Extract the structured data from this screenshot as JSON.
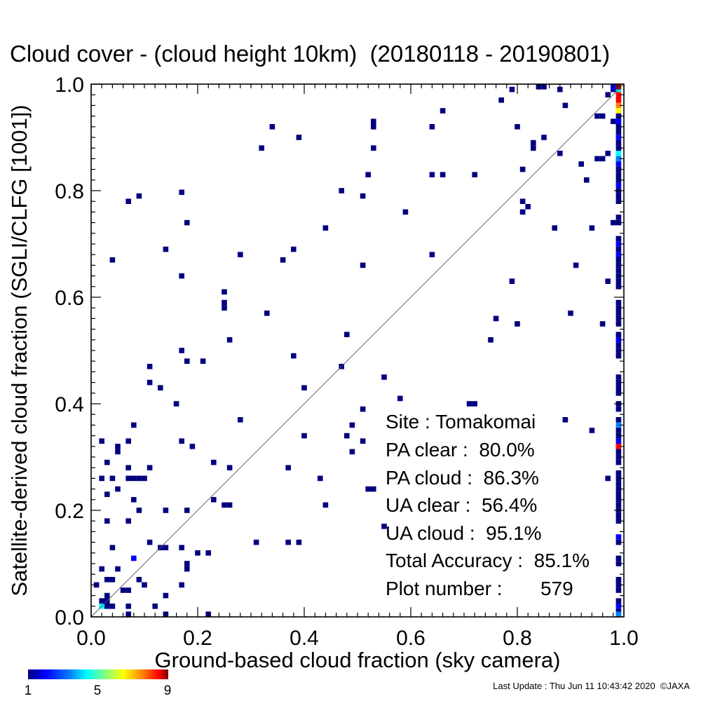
{
  "chart_data": {
    "type": "heatmap",
    "title": "Cloud cover - (cloud height 10km)  (20180118 - 20190801)",
    "xlabel": "Ground-based cloud fraction (sky camera)",
    "ylabel": "Satellite-derived cloud fraction (SGLI/CLFG [1001])",
    "xlim": [
      0,
      1
    ],
    "ylim": [
      0,
      1
    ],
    "grid": false,
    "x_ticks": [
      "0.0",
      "0.2",
      "0.4",
      "0.6",
      "0.8",
      "1.0"
    ],
    "y_ticks": [
      "0.0",
      "0.2",
      "0.4",
      "0.6",
      "0.8",
      "1.0"
    ],
    "reference_line": "y = x",
    "colorbar": {
      "ticks": [
        "1",
        "5",
        "9"
      ],
      "min": 1,
      "max": 9,
      "colors": [
        "#000080",
        "#0000ff",
        "#0080ff",
        "#00ffff",
        "#80ff80",
        "#ffff00",
        "#ff8000",
        "#ff0000",
        "#800000"
      ]
    },
    "cells": [
      {
        "x": 0.17,
        "y": 0.797,
        "count": 1
      },
      {
        "x": 0.07,
        "y": 0.78,
        "count": 1
      },
      {
        "x": 0.09,
        "y": 0.79,
        "count": 1
      },
      {
        "x": 0.18,
        "y": 0.74,
        "count": 1
      },
      {
        "x": 0.14,
        "y": 0.69,
        "count": 1
      },
      {
        "x": 0.04,
        "y": 0.67,
        "count": 1
      },
      {
        "x": 0.17,
        "y": 0.64,
        "count": 1
      },
      {
        "x": 0.25,
        "y": 0.61,
        "count": 1
      },
      {
        "x": 0.25,
        "y": 0.59,
        "count": 1
      },
      {
        "x": 0.25,
        "y": 0.58,
        "count": 1
      },
      {
        "x": 0.28,
        "y": 0.68,
        "count": 1
      },
      {
        "x": 0.33,
        "y": 0.57,
        "count": 1
      },
      {
        "x": 0.26,
        "y": 0.52,
        "count": 1
      },
      {
        "x": 0.17,
        "y": 0.5,
        "count": 1
      },
      {
        "x": 0.18,
        "y": 0.48,
        "count": 1
      },
      {
        "x": 0.21,
        "y": 0.48,
        "count": 1
      },
      {
        "x": 0.11,
        "y": 0.47,
        "count": 1
      },
      {
        "x": 0.11,
        "y": 0.44,
        "count": 1
      },
      {
        "x": 0.13,
        "y": 0.43,
        "count": 1
      },
      {
        "x": 0.16,
        "y": 0.4,
        "count": 1
      },
      {
        "x": 0.08,
        "y": 0.36,
        "count": 1
      },
      {
        "x": 0.28,
        "y": 0.37,
        "count": 1
      },
      {
        "x": 0.02,
        "y": 0.33,
        "count": 1
      },
      {
        "x": 0.05,
        "y": 0.32,
        "count": 1
      },
      {
        "x": 0.05,
        "y": 0.31,
        "count": 1
      },
      {
        "x": 0.07,
        "y": 0.33,
        "count": 1
      },
      {
        "x": 0.17,
        "y": 0.33,
        "count": 1
      },
      {
        "x": 0.19,
        "y": 0.32,
        "count": 1
      },
      {
        "x": 0.03,
        "y": 0.29,
        "count": 1
      },
      {
        "x": 0.07,
        "y": 0.28,
        "count": 1
      },
      {
        "x": 0.11,
        "y": 0.28,
        "count": 1
      },
      {
        "x": 0.23,
        "y": 0.29,
        "count": 1
      },
      {
        "x": 0.26,
        "y": 0.28,
        "count": 1
      },
      {
        "x": 0.02,
        "y": 0.26,
        "count": 1
      },
      {
        "x": 0.04,
        "y": 0.26,
        "count": 1
      },
      {
        "x": 0.07,
        "y": 0.26,
        "count": 1
      },
      {
        "x": 0.08,
        "y": 0.26,
        "count": 1
      },
      {
        "x": 0.09,
        "y": 0.26,
        "count": 1
      },
      {
        "x": 0.1,
        "y": 0.26,
        "count": 1
      },
      {
        "x": 0.05,
        "y": 0.24,
        "count": 1
      },
      {
        "x": 0.03,
        "y": 0.23,
        "count": 1
      },
      {
        "x": 0.08,
        "y": 0.22,
        "count": 1
      },
      {
        "x": 0.09,
        "y": 0.2,
        "count": 1
      },
      {
        "x": 0.14,
        "y": 0.2,
        "count": 1
      },
      {
        "x": 0.18,
        "y": 0.2,
        "count": 1
      },
      {
        "x": 0.23,
        "y": 0.22,
        "count": 1
      },
      {
        "x": 0.25,
        "y": 0.21,
        "count": 1
      },
      {
        "x": 0.26,
        "y": 0.21,
        "count": 1
      },
      {
        "x": 0.03,
        "y": 0.18,
        "count": 1
      },
      {
        "x": 0.07,
        "y": 0.18,
        "count": 1
      },
      {
        "x": 0.11,
        "y": 0.14,
        "count": 1
      },
      {
        "x": 0.13,
        "y": 0.13,
        "count": 1
      },
      {
        "x": 0.14,
        "y": 0.13,
        "count": 1
      },
      {
        "x": 0.04,
        "y": 0.13,
        "count": 1
      },
      {
        "x": 0.17,
        "y": 0.13,
        "count": 1
      },
      {
        "x": 0.2,
        "y": 0.12,
        "count": 1
      },
      {
        "x": 0.22,
        "y": 0.12,
        "count": 1
      },
      {
        "x": 0.18,
        "y": 0.1,
        "count": 1
      },
      {
        "x": 0.18,
        "y": 0.09,
        "count": 1
      },
      {
        "x": 0.02,
        "y": 0.09,
        "count": 1
      },
      {
        "x": 0.05,
        "y": 0.09,
        "count": 1
      },
      {
        "x": 0.08,
        "y": 0.11,
        "count": 2
      },
      {
        "x": 0.03,
        "y": 0.07,
        "count": 1
      },
      {
        "x": 0.04,
        "y": 0.07,
        "count": 1
      },
      {
        "x": 0.01,
        "y": 0.06,
        "count": 1
      },
      {
        "x": 0.09,
        "y": 0.07,
        "count": 1
      },
      {
        "x": 0.1,
        "y": 0.06,
        "count": 1
      },
      {
        "x": 0.06,
        "y": 0.05,
        "count": 1
      },
      {
        "x": 0.07,
        "y": 0.05,
        "count": 1
      },
      {
        "x": 0.03,
        "y": 0.04,
        "count": 1
      },
      {
        "x": 0.02,
        "y": 0.03,
        "count": 1
      },
      {
        "x": 0.03,
        "y": 0.03,
        "count": 1
      },
      {
        "x": 0.02,
        "y": 0.02,
        "count": 4
      },
      {
        "x": 0.03,
        "y": 0.02,
        "count": 1
      },
      {
        "x": 0.04,
        "y": 0.02,
        "count": 1
      },
      {
        "x": 0.07,
        "y": 0.02,
        "count": 1
      },
      {
        "x": 0.12,
        "y": 0.02,
        "count": 1
      },
      {
        "x": 0.14,
        "y": 0.04,
        "count": 1
      },
      {
        "x": 0.17,
        "y": 0.06,
        "count": 1
      },
      {
        "x": 0.07,
        "y": 0.0,
        "count": 1
      },
      {
        "x": 0.14,
        "y": 0.0,
        "count": 1
      },
      {
        "x": 0.22,
        "y": 0.0,
        "count": 1
      },
      {
        "x": 0.31,
        "y": 0.14,
        "count": 1
      },
      {
        "x": 0.37,
        "y": 0.14,
        "count": 1
      },
      {
        "x": 0.39,
        "y": 0.14,
        "count": 1
      },
      {
        "x": 0.37,
        "y": 0.28,
        "count": 1
      },
      {
        "x": 0.4,
        "y": 0.34,
        "count": 1
      },
      {
        "x": 0.4,
        "y": 0.43,
        "count": 1
      },
      {
        "x": 0.38,
        "y": 0.49,
        "count": 1
      },
      {
        "x": 0.36,
        "y": 0.67,
        "count": 1
      },
      {
        "x": 0.38,
        "y": 0.69,
        "count": 1
      },
      {
        "x": 0.44,
        "y": 0.73,
        "count": 1
      },
      {
        "x": 0.47,
        "y": 0.8,
        "count": 1
      },
      {
        "x": 0.32,
        "y": 0.88,
        "count": 1
      },
      {
        "x": 0.34,
        "y": 0.92,
        "count": 1
      },
      {
        "x": 0.39,
        "y": 0.9,
        "count": 1
      },
      {
        "x": 0.52,
        "y": 0.83,
        "count": 1
      },
      {
        "x": 0.53,
        "y": 0.88,
        "count": 1
      },
      {
        "x": 0.53,
        "y": 0.92,
        "count": 1
      },
      {
        "x": 0.53,
        "y": 0.93,
        "count": 1
      },
      {
        "x": 0.51,
        "y": 0.79,
        "count": 1
      },
      {
        "x": 0.51,
        "y": 0.66,
        "count": 1
      },
      {
        "x": 0.48,
        "y": 0.53,
        "count": 1
      },
      {
        "x": 0.47,
        "y": 0.47,
        "count": 1
      },
      {
        "x": 0.43,
        "y": 0.26,
        "count": 1
      },
      {
        "x": 0.44,
        "y": 0.21,
        "count": 1
      },
      {
        "x": 0.48,
        "y": 0.34,
        "count": 1
      },
      {
        "x": 0.49,
        "y": 0.36,
        "count": 1
      },
      {
        "x": 0.49,
        "y": 0.31,
        "count": 1
      },
      {
        "x": 0.51,
        "y": 0.33,
        "count": 1
      },
      {
        "x": 0.51,
        "y": 0.39,
        "count": 1
      },
      {
        "x": 0.52,
        "y": 0.24,
        "count": 1
      },
      {
        "x": 0.53,
        "y": 0.24,
        "count": 1
      },
      {
        "x": 0.55,
        "y": 0.45,
        "count": 1
      },
      {
        "x": 0.55,
        "y": 0.17,
        "count": 1
      },
      {
        "x": 0.58,
        "y": 0.41,
        "count": 1
      },
      {
        "x": 0.59,
        "y": 0.76,
        "count": 1
      },
      {
        "x": 0.64,
        "y": 0.68,
        "count": 1
      },
      {
        "x": 0.64,
        "y": 0.83,
        "count": 1
      },
      {
        "x": 0.66,
        "y": 0.83,
        "count": 1
      },
      {
        "x": 0.64,
        "y": 0.92,
        "count": 1
      },
      {
        "x": 0.66,
        "y": 0.95,
        "count": 1
      },
      {
        "x": 0.72,
        "y": 0.83,
        "count": 1
      },
      {
        "x": 0.71,
        "y": 0.4,
        "count": 1
      },
      {
        "x": 0.72,
        "y": 0.4,
        "count": 1
      },
      {
        "x": 0.75,
        "y": 0.52,
        "count": 1
      },
      {
        "x": 0.76,
        "y": 0.56,
        "count": 1
      },
      {
        "x": 0.77,
        "y": 0.97,
        "count": 1
      },
      {
        "x": 0.79,
        "y": 0.99,
        "count": 1
      },
      {
        "x": 0.79,
        "y": 0.63,
        "count": 1
      },
      {
        "x": 0.8,
        "y": 0.55,
        "count": 1
      },
      {
        "x": 0.8,
        "y": 0.92,
        "count": 1
      },
      {
        "x": 0.81,
        "y": 0.84,
        "count": 1
      },
      {
        "x": 0.81,
        "y": 0.78,
        "count": 1
      },
      {
        "x": 0.81,
        "y": 0.76,
        "count": 1
      },
      {
        "x": 0.82,
        "y": 0.77,
        "count": 1
      },
      {
        "x": 0.83,
        "y": 0.89,
        "count": 1
      },
      {
        "x": 0.83,
        "y": 0.88,
        "count": 1
      },
      {
        "x": 0.84,
        "y": 1.0,
        "count": 1
      },
      {
        "x": 0.85,
        "y": 1.0,
        "count": 1
      },
      {
        "x": 0.85,
        "y": 0.9,
        "count": 1
      },
      {
        "x": 0.87,
        "y": 0.73,
        "count": 1
      },
      {
        "x": 0.88,
        "y": 0.87,
        "count": 1
      },
      {
        "x": 0.88,
        "y": 0.99,
        "count": 1
      },
      {
        "x": 0.89,
        "y": 0.96,
        "count": 1
      },
      {
        "x": 0.89,
        "y": 0.37,
        "count": 1
      },
      {
        "x": 0.9,
        "y": 0.57,
        "count": 1
      },
      {
        "x": 0.91,
        "y": 0.66,
        "count": 1
      },
      {
        "x": 0.92,
        "y": 0.85,
        "count": 1
      },
      {
        "x": 0.93,
        "y": 0.82,
        "count": 1
      },
      {
        "x": 0.94,
        "y": 0.73,
        "count": 1
      },
      {
        "x": 0.94,
        "y": 0.35,
        "count": 1
      },
      {
        "x": 0.95,
        "y": 0.86,
        "count": 1
      },
      {
        "x": 0.96,
        "y": 0.86,
        "count": 1
      },
      {
        "x": 0.96,
        "y": 0.55,
        "count": 1
      },
      {
        "x": 0.97,
        "y": 0.87,
        "count": 1
      },
      {
        "x": 0.98,
        "y": 0.93,
        "count": 1
      },
      {
        "x": 0.97,
        "y": 0.63,
        "count": 1
      },
      {
        "x": 0.97,
        "y": 0.26,
        "count": 1
      },
      {
        "x": 0.98,
        "y": 0.74,
        "count": 1
      },
      {
        "x": 0.95,
        "y": 0.94,
        "count": 1
      },
      {
        "x": 0.96,
        "y": 0.94,
        "count": 1
      },
      {
        "x": 0.97,
        "y": 0.98,
        "count": 1
      },
      {
        "x": 0.98,
        "y": 0.99,
        "count": 1
      },
      {
        "x": 0.98,
        "y": 1.0,
        "count": 2
      },
      {
        "x": 0.99,
        "y": 0.99,
        "count": 4
      },
      {
        "x": 0.99,
        "y": 1.0,
        "count": 9
      },
      {
        "x": 0.99,
        "y": 0.98,
        "count": 8
      },
      {
        "x": 0.99,
        "y": 0.97,
        "count": 8
      },
      {
        "x": 0.99,
        "y": 0.96,
        "count": 7
      },
      {
        "x": 0.99,
        "y": 0.95,
        "count": 6
      },
      {
        "x": 0.99,
        "y": 0.94,
        "count": 1
      },
      {
        "x": 0.99,
        "y": 0.93,
        "count": 2
      },
      {
        "x": 0.99,
        "y": 0.92,
        "count": 1
      },
      {
        "x": 0.99,
        "y": 0.91,
        "count": 1
      },
      {
        "x": 0.99,
        "y": 0.9,
        "count": 2
      },
      {
        "x": 0.99,
        "y": 0.89,
        "count": 1
      },
      {
        "x": 0.99,
        "y": 0.88,
        "count": 1
      },
      {
        "x": 0.99,
        "y": 0.87,
        "count": 4
      },
      {
        "x": 0.99,
        "y": 0.86,
        "count": 3
      },
      {
        "x": 0.99,
        "y": 0.85,
        "count": 2
      },
      {
        "x": 0.99,
        "y": 0.84,
        "count": 1
      },
      {
        "x": 0.99,
        "y": 0.83,
        "count": 1
      },
      {
        "x": 0.99,
        "y": 0.82,
        "count": 1
      },
      {
        "x": 0.99,
        "y": 0.81,
        "count": 2
      },
      {
        "x": 0.99,
        "y": 0.8,
        "count": 1
      },
      {
        "x": 0.99,
        "y": 0.79,
        "count": 1
      },
      {
        "x": 0.99,
        "y": 0.78,
        "count": 1
      },
      {
        "x": 0.99,
        "y": 0.75,
        "count": 1
      },
      {
        "x": 0.99,
        "y": 0.74,
        "count": 1
      },
      {
        "x": 0.99,
        "y": 0.71,
        "count": 1
      },
      {
        "x": 0.99,
        "y": 0.7,
        "count": 2
      },
      {
        "x": 0.99,
        "y": 0.69,
        "count": 1
      },
      {
        "x": 0.99,
        "y": 0.68,
        "count": 2
      },
      {
        "x": 0.99,
        "y": 0.67,
        "count": 1
      },
      {
        "x": 0.99,
        "y": 0.66,
        "count": 1
      },
      {
        "x": 0.99,
        "y": 0.65,
        "count": 1
      },
      {
        "x": 0.99,
        "y": 0.64,
        "count": 1
      },
      {
        "x": 0.99,
        "y": 0.63,
        "count": 1
      },
      {
        "x": 0.99,
        "y": 0.62,
        "count": 1
      },
      {
        "x": 0.99,
        "y": 0.59,
        "count": 1
      },
      {
        "x": 0.99,
        "y": 0.58,
        "count": 1
      },
      {
        "x": 0.99,
        "y": 0.57,
        "count": 1
      },
      {
        "x": 0.99,
        "y": 0.56,
        "count": 1
      },
      {
        "x": 0.99,
        "y": 0.55,
        "count": 1
      },
      {
        "x": 0.99,
        "y": 0.53,
        "count": 1
      },
      {
        "x": 0.99,
        "y": 0.52,
        "count": 2
      },
      {
        "x": 0.99,
        "y": 0.51,
        "count": 1
      },
      {
        "x": 0.99,
        "y": 0.5,
        "count": 1
      },
      {
        "x": 0.99,
        "y": 0.49,
        "count": 1
      },
      {
        "x": 0.99,
        "y": 0.45,
        "count": 1
      },
      {
        "x": 0.99,
        "y": 0.44,
        "count": 1
      },
      {
        "x": 0.99,
        "y": 0.43,
        "count": 1
      },
      {
        "x": 0.99,
        "y": 0.42,
        "count": 1
      },
      {
        "x": 0.99,
        "y": 0.4,
        "count": 1
      },
      {
        "x": 0.99,
        "y": 0.39,
        "count": 1
      },
      {
        "x": 0.99,
        "y": 0.37,
        "count": 1
      },
      {
        "x": 0.99,
        "y": 0.36,
        "count": 3
      },
      {
        "x": 0.99,
        "y": 0.35,
        "count": 1
      },
      {
        "x": 0.99,
        "y": 0.34,
        "count": 1
      },
      {
        "x": 0.99,
        "y": 0.33,
        "count": 2
      },
      {
        "x": 0.99,
        "y": 0.32,
        "count": 8
      },
      {
        "x": 0.99,
        "y": 0.31,
        "count": 1
      },
      {
        "x": 0.99,
        "y": 0.3,
        "count": 1
      },
      {
        "x": 0.99,
        "y": 0.29,
        "count": 1
      },
      {
        "x": 0.99,
        "y": 0.27,
        "count": 1
      },
      {
        "x": 0.99,
        "y": 0.26,
        "count": 1
      },
      {
        "x": 0.99,
        "y": 0.25,
        "count": 1
      },
      {
        "x": 0.99,
        "y": 0.24,
        "count": 1
      },
      {
        "x": 0.99,
        "y": 0.23,
        "count": 1
      },
      {
        "x": 0.99,
        "y": 0.22,
        "count": 1
      },
      {
        "x": 0.99,
        "y": 0.21,
        "count": 1
      },
      {
        "x": 0.99,
        "y": 0.2,
        "count": 1
      },
      {
        "x": 0.99,
        "y": 0.19,
        "count": 1
      },
      {
        "x": 0.99,
        "y": 0.18,
        "count": 1
      },
      {
        "x": 0.99,
        "y": 0.15,
        "count": 2
      },
      {
        "x": 0.99,
        "y": 0.14,
        "count": 1
      },
      {
        "x": 0.99,
        "y": 0.11,
        "count": 1
      },
      {
        "x": 0.99,
        "y": 0.1,
        "count": 1
      },
      {
        "x": 0.99,
        "y": 0.07,
        "count": 1
      },
      {
        "x": 0.99,
        "y": 0.06,
        "count": 1
      },
      {
        "x": 0.99,
        "y": 0.05,
        "count": 1
      },
      {
        "x": 0.99,
        "y": 0.03,
        "count": 1
      },
      {
        "x": 0.99,
        "y": 0.02,
        "count": 2
      },
      {
        "x": 0.99,
        "y": 0.01,
        "count": 1
      },
      {
        "x": 0.99,
        "y": 0.0,
        "count": 3
      }
    ],
    "stats": {
      "site": "Site : Tomakomai",
      "pa_clear": "PA clear :  80.0%",
      "pa_cloud": "PA cloud :  86.3%",
      "ua_clear": "UA clear :  56.4%",
      "ua_cloud": "UA cloud :  95.1%",
      "total_accuracy": "Total Accuracy :  85.1%",
      "plot_number": "Plot number :       579"
    }
  },
  "footer": {
    "last_update": "Last Update : Thu Jun 11 10:43:42 2020  ©JAXA"
  }
}
